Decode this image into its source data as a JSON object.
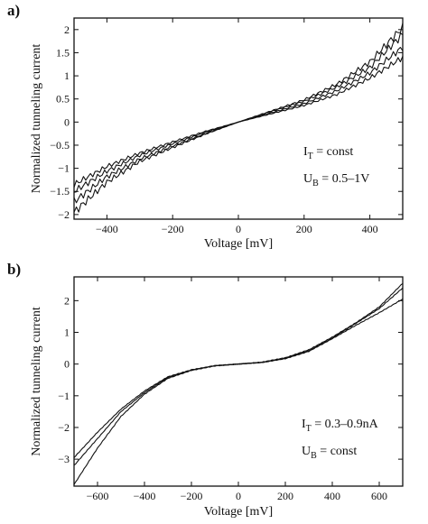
{
  "chart_data": [
    {
      "type": "line",
      "panel_label": "a)",
      "xlabel": "Voltage [mV]",
      "ylabel": "Normalized tunneling current",
      "xlim": [
        -500,
        500
      ],
      "ylim": [
        -2.1,
        2.25
      ],
      "x_ticks": [
        -400,
        -200,
        0,
        200,
        400
      ],
      "x_tick_labels": [
        "−400",
        "−200",
        "0",
        "200",
        "400"
      ],
      "y_ticks": [
        -2,
        -1.5,
        -1,
        -0.5,
        0,
        0.5,
        1,
        1.5,
        2
      ],
      "y_tick_labels": [
        "−2",
        "−1.5",
        "−1",
        "−0.5",
        "0",
        "0.5",
        "1",
        "1.5",
        "2"
      ],
      "grid": false,
      "series": [
        {
          "x": [
            -500,
            -400,
            -300,
            -200,
            -100,
            0,
            100,
            200,
            300,
            400,
            500
          ],
          "y": [
            -1.95,
            -1.3,
            -0.85,
            -0.55,
            -0.26,
            0,
            0.24,
            0.48,
            0.82,
            1.3,
            2.05
          ]
        },
        {
          "x": [
            -500,
            -400,
            -300,
            -200,
            -100,
            0,
            100,
            200,
            300,
            400,
            500
          ],
          "y": [
            -1.72,
            -1.18,
            -0.8,
            -0.52,
            -0.25,
            0,
            0.23,
            0.45,
            0.76,
            1.18,
            1.9
          ]
        },
        {
          "x": [
            -500,
            -400,
            -300,
            -200,
            -100,
            0,
            100,
            200,
            300,
            400,
            500
          ],
          "y": [
            -1.5,
            -1.06,
            -0.72,
            -0.47,
            -0.22,
            0,
            0.2,
            0.4,
            0.68,
            1.06,
            1.62
          ]
        },
        {
          "x": [
            -500,
            -400,
            -300,
            -200,
            -100,
            0,
            100,
            200,
            300,
            400,
            500
          ],
          "y": [
            -1.35,
            -0.96,
            -0.67,
            -0.43,
            -0.2,
            0,
            0.18,
            0.36,
            0.6,
            0.95,
            1.4
          ]
        }
      ],
      "annotations": [
        {
          "main": "I",
          "sub": "T",
          "rest": " = const"
        },
        {
          "main": "U",
          "sub": "B",
          "rest": " = 0.5–1V"
        }
      ]
    },
    {
      "type": "line",
      "panel_label": "b)",
      "xlabel": "Voltage [mV]",
      "ylabel": "Normalized tunneling current",
      "xlim": [
        -700,
        700
      ],
      "ylim": [
        -3.85,
        2.75
      ],
      "x_ticks": [
        -600,
        -400,
        -200,
        0,
        200,
        400,
        600
      ],
      "x_tick_labels": [
        "−600",
        "−400",
        "−200",
        "0",
        "200",
        "400",
        "600"
      ],
      "y_ticks": [
        -3,
        -2,
        -1,
        0,
        1,
        2
      ],
      "y_tick_labels": [
        "−3",
        "−2",
        "−1",
        "0",
        "1",
        "2"
      ],
      "grid": false,
      "series": [
        {
          "x": [
            -700,
            -600,
            -500,
            -400,
            -300,
            -200,
            -100,
            0,
            100,
            200,
            300,
            400,
            500,
            600,
            700
          ],
          "y": [
            -3.8,
            -2.65,
            -1.65,
            -0.95,
            -0.45,
            -0.2,
            -0.06,
            0,
            0.06,
            0.2,
            0.45,
            0.85,
            1.3,
            1.8,
            2.55
          ]
        },
        {
          "x": [
            -700,
            -600,
            -500,
            -400,
            -300,
            -200,
            -100,
            0,
            100,
            200,
            300,
            400,
            500,
            600,
            700
          ],
          "y": [
            -3.2,
            -2.35,
            -1.5,
            -0.9,
            -0.42,
            -0.19,
            -0.05,
            0,
            0.05,
            0.18,
            0.42,
            0.82,
            1.28,
            1.75,
            2.4
          ]
        },
        {
          "x": [
            -700,
            -600,
            -500,
            -400,
            -300,
            -200,
            -100,
            0,
            100,
            200,
            300,
            400,
            500,
            600,
            700
          ],
          "y": [
            -2.95,
            -2.15,
            -1.42,
            -0.85,
            -0.4,
            -0.18,
            -0.05,
            0,
            0.05,
            0.17,
            0.4,
            0.8,
            1.22,
            1.62,
            2.05
          ]
        }
      ],
      "annotations": [
        {
          "main": "I",
          "sub": "T",
          "rest": " = 0.3–0.9nA"
        },
        {
          "main": "U",
          "sub": "B",
          "rest": " = const"
        }
      ]
    }
  ]
}
